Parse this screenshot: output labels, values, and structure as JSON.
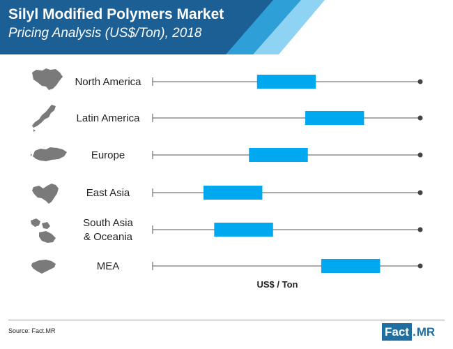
{
  "chart_data": {
    "type": "range",
    "title": "Silyl Modified Polymers Market",
    "subtitle": "Pricing Analysis (US$/Ton), 2018",
    "xlabel": "US$ / Ton",
    "categories": [
      "North America",
      "Latin America",
      "Europe",
      "East Asia",
      "South Asia\n& Oceania",
      "MEA"
    ],
    "series": [
      {
        "values": [
          [
            0.39,
            0.61
          ],
          [
            0.57,
            0.79
          ],
          [
            0.36,
            0.58
          ],
          [
            0.19,
            0.41
          ],
          [
            0.23,
            0.45
          ],
          [
            0.63,
            0.85
          ]
        ]
      }
    ],
    "xlim": [
      0,
      1
    ],
    "colors": {
      "bar": "#00a8f0",
      "axis": "#555555",
      "header_dark": "#1c5f95",
      "header_mid": "#2f9fd8",
      "header_light": "#8fd3f4",
      "map": "#7a7a7a"
    },
    "icons": [
      "north-america-map-icon",
      "latin-america-map-icon",
      "europe-map-icon",
      "east-asia-map-icon",
      "south-asia-oceania-map-icon",
      "mea-map-icon"
    ]
  },
  "footer": {
    "source": "Source: Fact.MR",
    "logo_fact": "Fact",
    "logo_dot": ".",
    "logo_mr": "MR"
  }
}
